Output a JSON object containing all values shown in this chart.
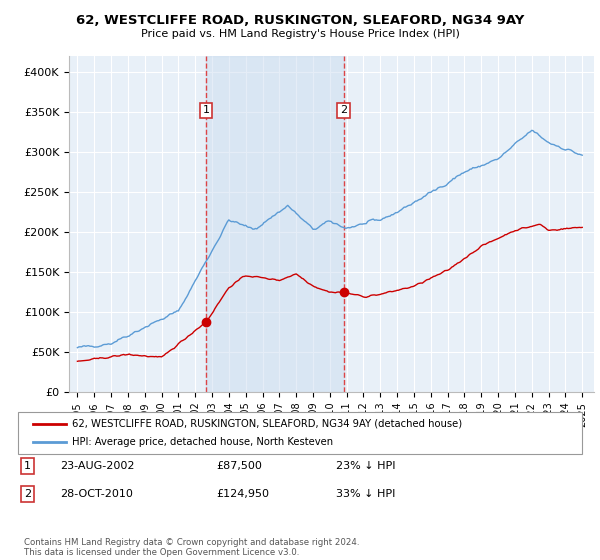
{
  "title": "62, WESTCLIFFE ROAD, RUSKINGTON, SLEAFORD, NG34 9AY",
  "subtitle": "Price paid vs. HM Land Registry's House Price Index (HPI)",
  "ylim": [
    0,
    420000
  ],
  "yticks": [
    0,
    50000,
    100000,
    150000,
    200000,
    250000,
    300000,
    350000,
    400000
  ],
  "ytick_labels": [
    "£0",
    "£50K",
    "£100K",
    "£150K",
    "£200K",
    "£250K",
    "£300K",
    "£350K",
    "£400K"
  ],
  "plot_bg_color": "#e8f0f8",
  "red_line_color": "#cc0000",
  "blue_line_color": "#5b9bd5",
  "grid_color": "#ffffff",
  "shade_color": "#ccddf0",
  "marker1_x": 2002.65,
  "marker1_price": 87500,
  "marker2_x": 2010.83,
  "marker2_price": 124950,
  "legend_red": "62, WESTCLIFFE ROAD, RUSKINGTON, SLEAFORD, NG34 9AY (detached house)",
  "legend_blue": "HPI: Average price, detached house, North Kesteven",
  "copyright": "Contains HM Land Registry data © Crown copyright and database right 2024.\nThis data is licensed under the Open Government Licence v3.0."
}
